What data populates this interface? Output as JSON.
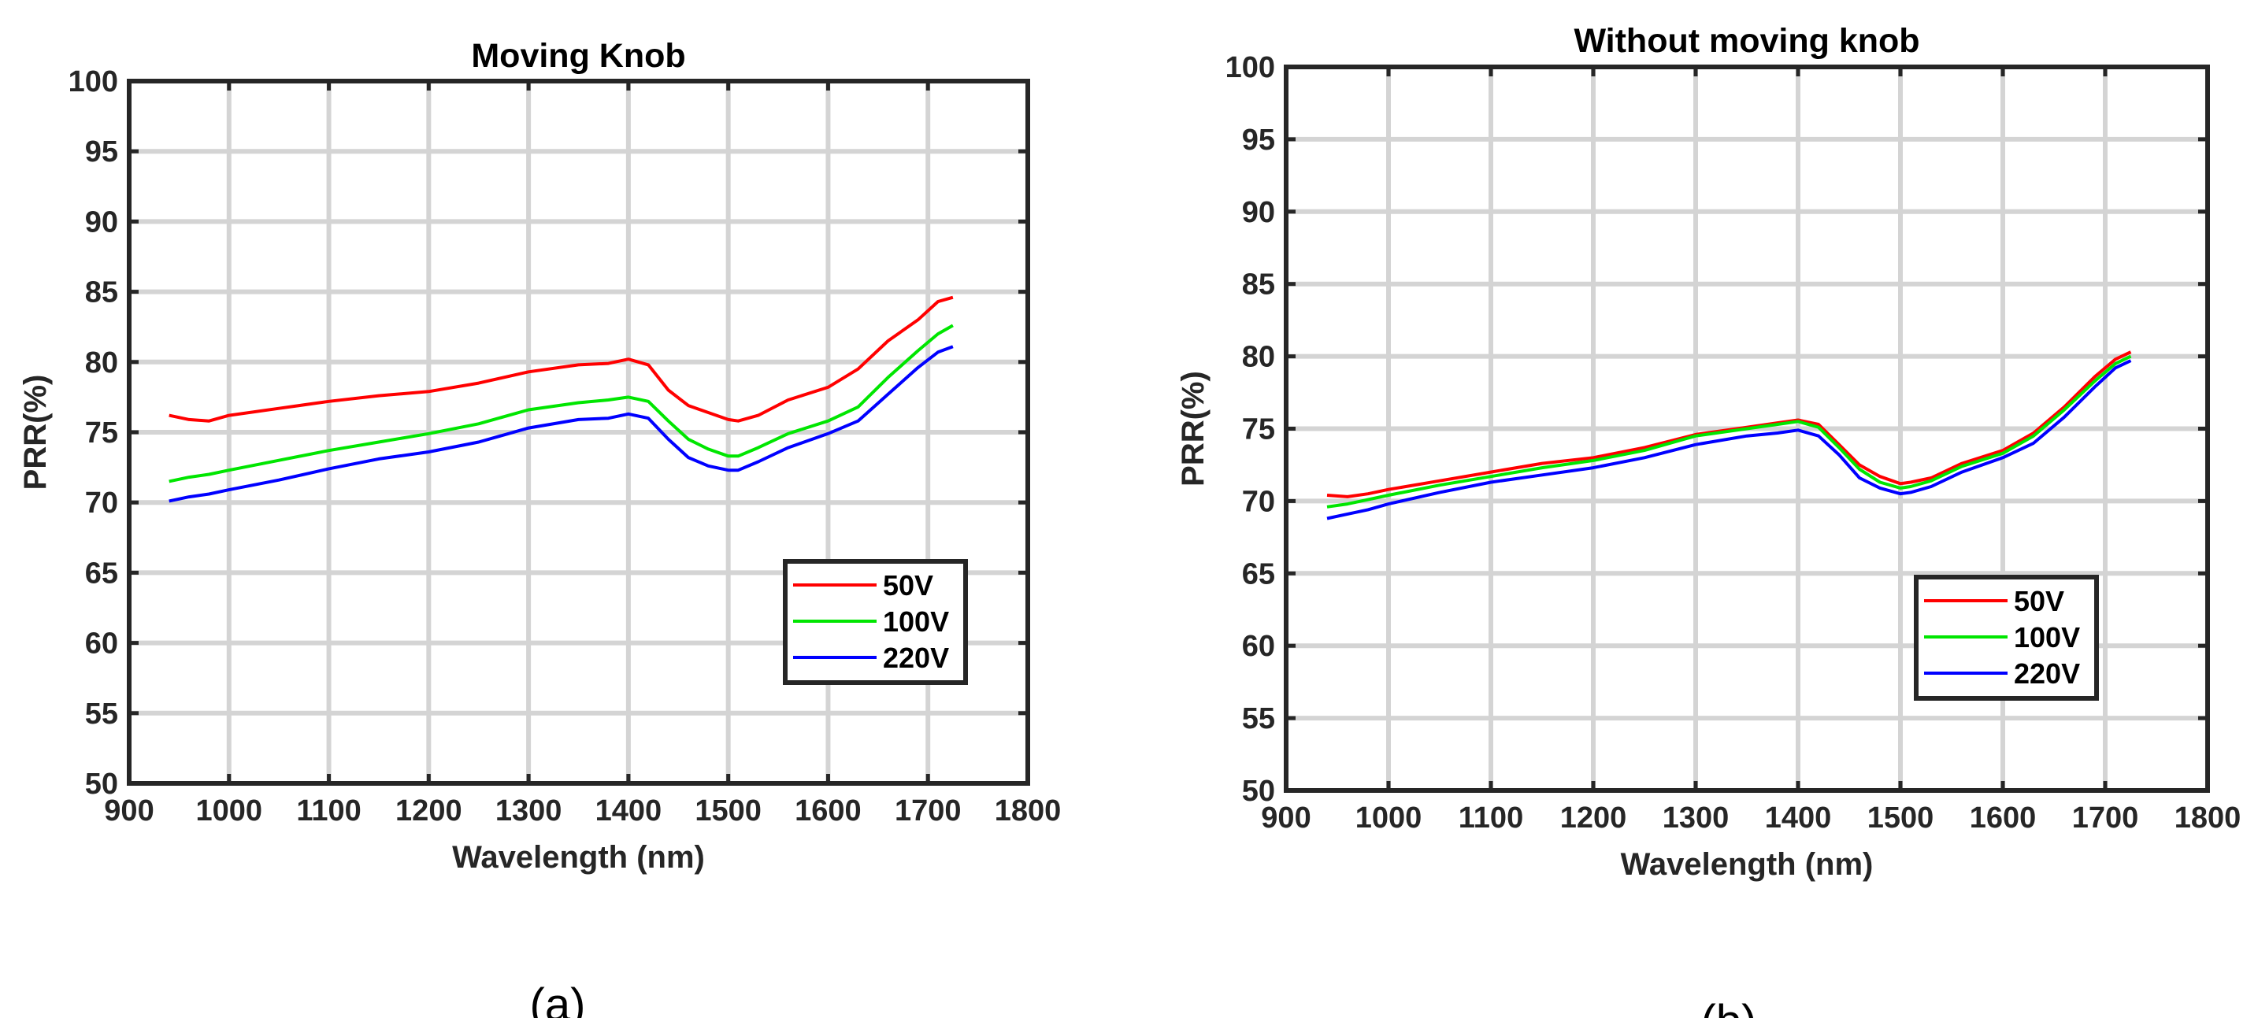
{
  "chart_data": [
    {
      "type": "line",
      "title": "Moving Knob",
      "caption": "(a)",
      "xlabel": "Wavelength (nm)",
      "ylabel": "PRR(%)",
      "xlim": [
        900,
        1800
      ],
      "ylim": [
        50,
        100
      ],
      "xticks": [
        900,
        1000,
        1100,
        1200,
        1300,
        1400,
        1500,
        1600,
        1700,
        1800
      ],
      "yticks": [
        50,
        55,
        60,
        65,
        70,
        75,
        80,
        85,
        90,
        95,
        100
      ],
      "grid": true,
      "legend_position": "right-middle",
      "x": [
        940,
        960,
        980,
        1000,
        1050,
        1100,
        1150,
        1200,
        1250,
        1300,
        1350,
        1380,
        1400,
        1420,
        1440,
        1460,
        1480,
        1500,
        1510,
        1530,
        1560,
        1600,
        1630,
        1660,
        1690,
        1710,
        1725
      ],
      "series": [
        {
          "name": "50V",
          "color": "#ff0000",
          "values": [
            76.2,
            75.9,
            75.8,
            76.2,
            76.7,
            77.2,
            77.6,
            77.9,
            78.5,
            79.3,
            79.8,
            79.9,
            80.2,
            79.8,
            78.0,
            76.9,
            76.4,
            75.9,
            75.8,
            76.2,
            77.3,
            78.2,
            79.5,
            81.5,
            83.0,
            84.3,
            84.6
          ]
        },
        {
          "name": "100V",
          "color": "#00e600",
          "values": [
            71.5,
            71.8,
            72.0,
            72.3,
            73.0,
            73.7,
            74.3,
            74.9,
            75.6,
            76.6,
            77.1,
            77.3,
            77.5,
            77.2,
            75.8,
            74.5,
            73.8,
            73.3,
            73.3,
            73.9,
            74.9,
            75.8,
            76.8,
            78.9,
            80.8,
            82.0,
            82.6
          ]
        },
        {
          "name": "220V",
          "color": "#0000ff",
          "values": [
            70.1,
            70.4,
            70.6,
            70.9,
            71.6,
            72.4,
            73.1,
            73.6,
            74.3,
            75.3,
            75.9,
            76.0,
            76.3,
            76.0,
            74.5,
            73.2,
            72.6,
            72.3,
            72.3,
            72.9,
            73.9,
            74.9,
            75.8,
            77.7,
            79.6,
            80.7,
            81.1
          ]
        }
      ]
    },
    {
      "type": "line",
      "title": "Without moving knob",
      "caption": "(b)",
      "xlabel": "Wavelength (nm)",
      "ylabel": "PRR(%)",
      "xlim": [
        900,
        1800
      ],
      "ylim": [
        50,
        100
      ],
      "xticks": [
        900,
        1000,
        1100,
        1200,
        1300,
        1400,
        1500,
        1600,
        1700,
        1800
      ],
      "yticks": [
        50,
        55,
        60,
        65,
        70,
        75,
        80,
        85,
        90,
        95,
        100
      ],
      "grid": true,
      "legend_position": "bottom-right",
      "x": [
        940,
        960,
        980,
        1000,
        1050,
        1100,
        1150,
        1200,
        1250,
        1300,
        1350,
        1380,
        1400,
        1420,
        1440,
        1460,
        1480,
        1500,
        1510,
        1530,
        1560,
        1600,
        1630,
        1660,
        1690,
        1710,
        1725
      ],
      "series": [
        {
          "name": "50V",
          "color": "#ff0000",
          "values": [
            70.4,
            70.3,
            70.5,
            70.8,
            71.4,
            72.0,
            72.6,
            73.0,
            73.7,
            74.6,
            75.1,
            75.4,
            75.6,
            75.3,
            73.9,
            72.5,
            71.7,
            71.2,
            71.3,
            71.6,
            72.6,
            73.5,
            74.7,
            76.5,
            78.6,
            79.8,
            80.3
          ]
        },
        {
          "name": "100V",
          "color": "#00e600",
          "values": [
            69.6,
            69.8,
            70.1,
            70.4,
            71.1,
            71.7,
            72.3,
            72.8,
            73.5,
            74.5,
            75.0,
            75.3,
            75.5,
            75.1,
            73.7,
            72.2,
            71.3,
            70.9,
            71.0,
            71.4,
            72.4,
            73.3,
            74.5,
            76.3,
            78.3,
            79.5,
            80.0
          ]
        },
        {
          "name": "220V",
          "color": "#0000ff",
          "values": [
            68.8,
            69.1,
            69.4,
            69.8,
            70.6,
            71.3,
            71.8,
            72.3,
            73.0,
            73.9,
            74.5,
            74.7,
            74.9,
            74.5,
            73.2,
            71.6,
            70.9,
            70.5,
            70.6,
            71.0,
            72.0,
            73.0,
            74.0,
            75.8,
            77.9,
            79.2,
            79.7
          ]
        }
      ]
    }
  ]
}
